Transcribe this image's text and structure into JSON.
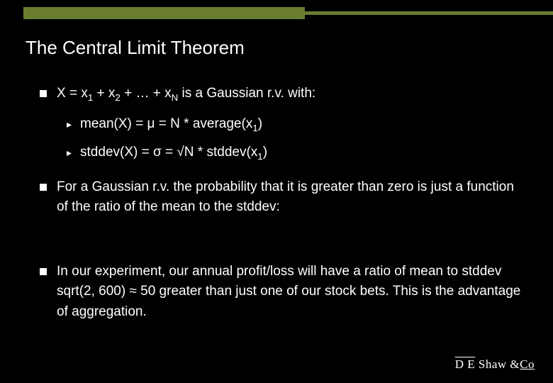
{
  "colors": {
    "background": "#000000",
    "accent": "#6b7d2f",
    "text": "#ffffff"
  },
  "title": "The Central Limit Theorem",
  "bullets": [
    {
      "text_html": "X = x<sub>1</sub> + x<sub>2</sub> + … + x<sub>N</sub> is a Gaussian r.v. with:",
      "subs": [
        {
          "text_html": "mean(X) = μ = N * average(x<sub>1</sub>)"
        },
        {
          "text_html": "stddev(X) = σ = √N * stddev(x<sub>1</sub>)"
        }
      ]
    },
    {
      "text_html": "For a Gaussian r.v. the probability that it is greater than zero is just a function of the ratio of the mean to the stddev:"
    },
    {
      "text_html": "In our experiment, our annual profit/loss will have a ratio of mean to stddev sqrt(2, 600) ≈ 50 greater than just one of our stock bets. This is the advantage of aggregation."
    }
  ],
  "logo": {
    "prefix": "D E",
    "main": " Shaw &",
    "suffix": "Co"
  }
}
